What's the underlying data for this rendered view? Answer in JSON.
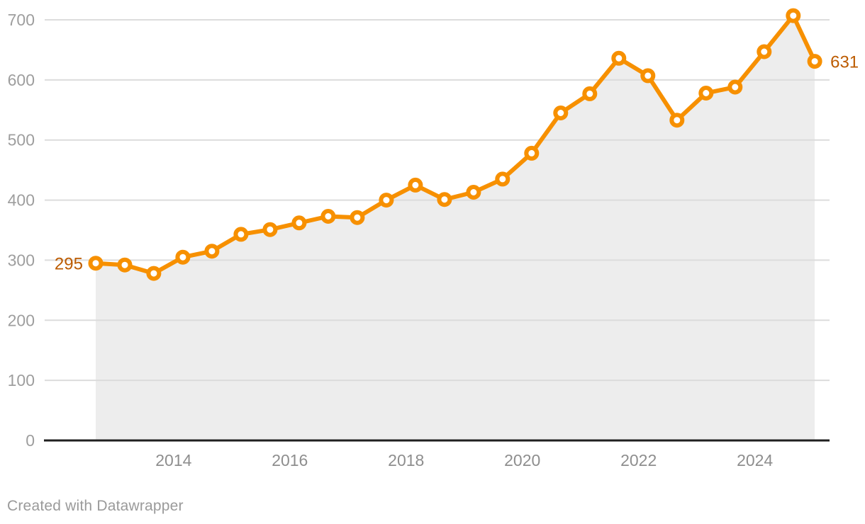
{
  "chart_data": {
    "type": "area",
    "series": [
      {
        "name": "value",
        "x": [
          2012.66,
          2013.16,
          2013.66,
          2014.16,
          2014.66,
          2015.16,
          2015.66,
          2016.16,
          2016.66,
          2017.16,
          2017.66,
          2018.16,
          2018.66,
          2019.16,
          2019.66,
          2020.16,
          2020.66,
          2021.16,
          2021.66,
          2022.16,
          2022.66,
          2023.16,
          2023.66,
          2024.16,
          2024.66,
          2025.03
        ],
        "values": [
          295,
          292,
          278,
          305,
          315,
          343,
          351,
          362,
          373,
          371,
          400,
          425,
          401,
          413,
          435,
          478,
          545,
          577,
          636,
          607,
          533,
          578,
          588,
          647,
          707,
          631
        ]
      }
    ],
    "title": "",
    "xlabel": "",
    "ylabel": "",
    "ylim": [
      0,
      700
    ],
    "xlim": [
      2011.77,
      2025.285
    ],
    "y_ticks": [
      0,
      100,
      200,
      300,
      400,
      500,
      600,
      700
    ],
    "x_ticks": [
      2014,
      2016,
      2018,
      2020,
      2022,
      2024
    ],
    "grid": "horizontal",
    "legend": "none",
    "first_point_label": "295",
    "last_point_label": "631",
    "colors": {
      "line": "#f79000",
      "marker_fill": "#ffffff",
      "value_label": "#bc5b00",
      "area_fill": "#ededed",
      "gridline": "#dcdcdc",
      "baseline": "#1f1f1f",
      "y_tick_text": "#9e9e9e",
      "x_tick_text": "#8e8e8e",
      "background": "#ffffff"
    }
  },
  "footer": {
    "credit": "Created with Datawrapper"
  }
}
